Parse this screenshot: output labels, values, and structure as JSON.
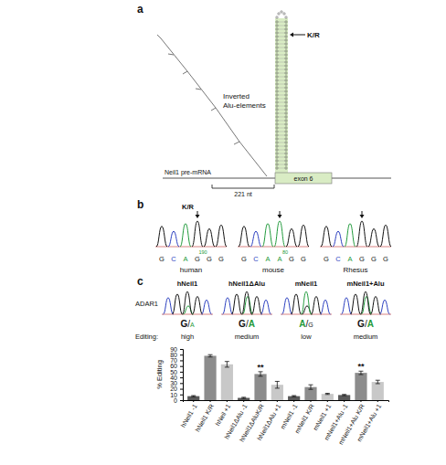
{
  "panel_a": {
    "letter": "a",
    "alu_label": "Inverted Alu-elements",
    "site_label": "K/R",
    "transcript_label": "Neil1 pre-mRNA",
    "exon_label": "exon 6",
    "distance_label": "221 nt"
  },
  "panel_b": {
    "letter": "b",
    "site_label": "K/R",
    "traces": [
      {
        "name": "human",
        "bases": [
          "G",
          "C",
          "A",
          "G",
          "G",
          "G"
        ],
        "position_label": "190"
      },
      {
        "name": "mouse",
        "bases": [
          "G",
          "C",
          "A",
          "A",
          "G",
          "G"
        ],
        "position_label": "80"
      },
      {
        "name": "Rhesus",
        "bases": [
          "G",
          "C",
          "A",
          "G",
          "G",
          "G"
        ]
      }
    ]
  },
  "panel_c": {
    "letter": "c",
    "enzyme": "ADAR1",
    "editing_label": "Editing:",
    "call_separator": "/",
    "constructs": [
      {
        "name": "hNeil1",
        "call_major": "G",
        "call_minor": "A",
        "level": "high"
      },
      {
        "name": "hNeil1ΔAlu",
        "call_major": "G",
        "call_minor": "A",
        "level": "medium"
      },
      {
        "name": "mNeil1",
        "call_major": "A",
        "call_minor": "G",
        "level": "low"
      },
      {
        "name": "mNeil1+Alu",
        "call_major": "G",
        "call_minor": "A",
        "level": "medium"
      }
    ]
  },
  "chart_data": {
    "type": "bar",
    "y_label": "% Editing",
    "categories": [
      "hNeil1 -1",
      "hNeil1 K/R",
      "hNeil +1",
      "hNeil1ΔAlu -1",
      "hNeil1ΔAluK/R",
      "hNeil1ΔAlu +1",
      "mNeil1 -1",
      "mNeil1 K/R",
      "mNeil1 +1",
      "mNeil1+Alu -1",
      "mNeil1+Alu K/R",
      "mNeil1+Alu +1"
    ],
    "values": [
      7,
      78,
      63,
      4,
      46,
      27,
      7,
      23,
      11,
      9,
      48,
      32
    ],
    "errors": [
      1,
      2,
      5,
      1,
      4,
      6,
      1,
      4,
      1,
      1,
      3,
      3
    ],
    "colors": [
      "#595959",
      "#8c8c8c",
      "#c8c8c8",
      "#595959",
      "#8c8c8c",
      "#c8c8c8",
      "#595959",
      "#8c8c8c",
      "#c8c8c8",
      "#595959",
      "#8c8c8c",
      "#c8c8c8"
    ],
    "ylim": [
      0,
      90
    ],
    "yticks": [
      0,
      10,
      20,
      30,
      40,
      50,
      60,
      70,
      80,
      90
    ],
    "annotations": [
      {
        "text": "**",
        "category": "hNeil1ΔAluK/R"
      },
      {
        "text": "**",
        "category": "mNeil1+Alu K/R"
      }
    ]
  }
}
